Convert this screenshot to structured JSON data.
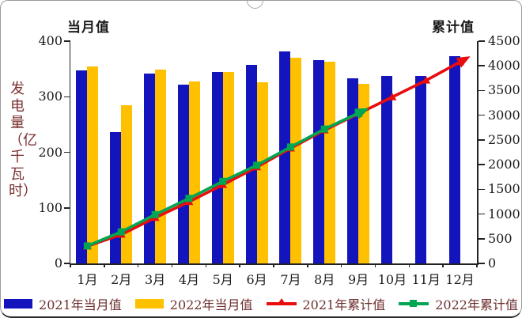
{
  "colors": {
    "bar_2021": "#1414bd",
    "bar_2022": "#ffc000",
    "line_2021": "#e80c0c",
    "line_2022": "#00a651",
    "axis_text": "#1c1c1c",
    "y_axis_title_text": "#7a3030",
    "legend_text": "#6e2f2f",
    "card_border": "#9a9a9a"
  },
  "chart_data": {
    "type": "bar",
    "subtype": "grouped bars (left axis) + cumulative lines (right axis)",
    "title": "",
    "ylabel": "发电量（亿千瓦时）",
    "xlabel": "",
    "grid": false,
    "legend_position": "bottom",
    "categories": [
      "1月",
      "2月",
      "3月",
      "4月",
      "5月",
      "6月",
      "7月",
      "8月",
      "9月",
      "10月",
      "11月",
      "12月"
    ],
    "left_axis": {
      "title": "当月值",
      "min": 0,
      "max": 400,
      "ticks": [
        0,
        100,
        200,
        300,
        400
      ]
    },
    "right_axis": {
      "title": "累计值",
      "min": 0,
      "max": 4500,
      "ticks": [
        0,
        500,
        1000,
        1500,
        2000,
        2500,
        3000,
        3500,
        4000,
        4500
      ]
    },
    "series": [
      {
        "name": "2021年当月值",
        "type": "bar",
        "axis": "left",
        "color": "#1414bd",
        "marker": "none",
        "values": [
          347,
          237,
          341,
          322,
          345,
          357,
          382,
          366,
          333,
          337,
          338,
          373
        ]
      },
      {
        "name": "2022年当月值",
        "type": "bar",
        "axis": "left",
        "color": "#ffc000",
        "marker": "none",
        "values": [
          354,
          285,
          349,
          328,
          345,
          326,
          370,
          363,
          323,
          null,
          null,
          null
        ]
      },
      {
        "name": "2021年累计值",
        "type": "line",
        "axis": "right",
        "color": "#e80c0c",
        "marker": "triangle",
        "values": [
          347,
          584,
          925,
          1247,
          1592,
          1949,
          2331,
          2697,
          3030,
          3367,
          3705,
          4078
        ]
      },
      {
        "name": "2022年累计值",
        "type": "line",
        "axis": "right",
        "color": "#00a651",
        "marker": "square",
        "values": [
          354,
          639,
          988,
          1316,
          1661,
          1987,
          2357,
          2720,
          3043,
          null,
          null,
          null
        ]
      }
    ]
  }
}
